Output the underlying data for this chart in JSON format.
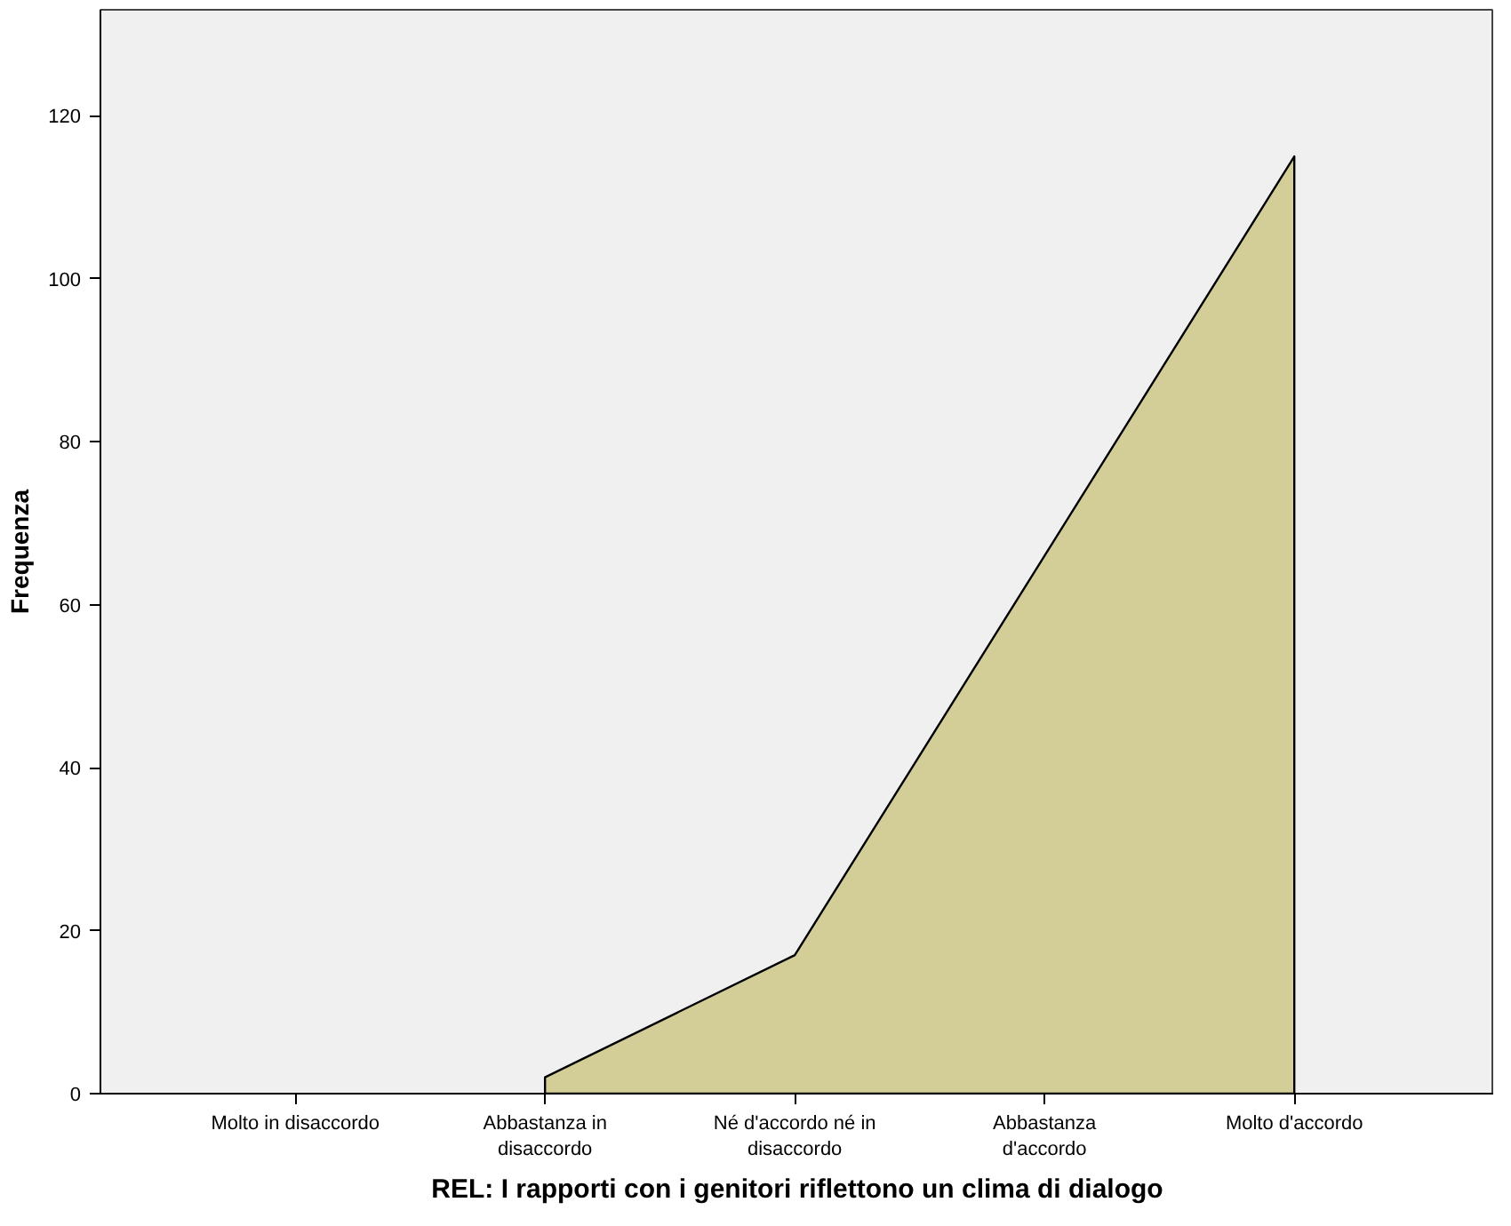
{
  "chart_data": {
    "type": "area",
    "xlabel": "REL: I rapporti con i genitori riflettono un clima di dialogo",
    "ylabel": "Frequenza",
    "categories": [
      "Molto in disaccordo",
      "Abbastanza in disaccordo",
      "Né d'accordo né in disaccordo",
      "Abbastanza d'accordo",
      "Molto d'accordo"
    ],
    "values": [
      null,
      2,
      17,
      66,
      115
    ],
    "color": "#d3ce98",
    "ylim": [
      0,
      133
    ],
    "yticks": [
      0,
      20,
      40,
      60,
      80,
      100,
      120
    ],
    "grid": false
  }
}
